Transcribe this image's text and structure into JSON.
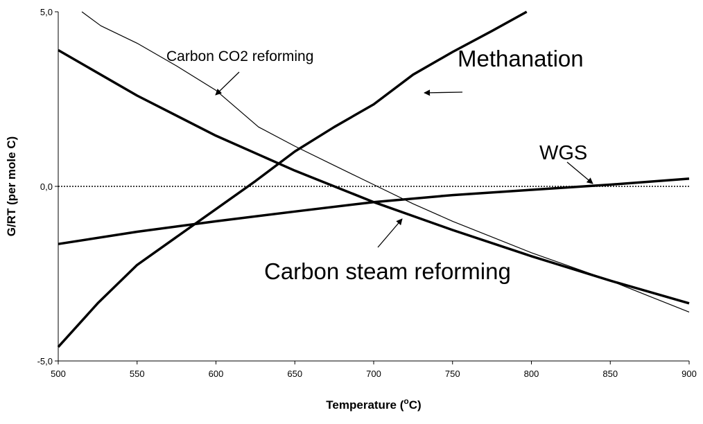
{
  "chart_data": {
    "type": "line",
    "xlabel": [
      "Temperature (",
      "o",
      "C)"
    ],
    "ylabel": "G/RT (per mole C)",
    "xlim": [
      500,
      900
    ],
    "ylim": [
      -5,
      5
    ],
    "xticks": [
      500,
      550,
      600,
      650,
      700,
      750,
      800,
      850,
      900
    ],
    "yticks": [
      {
        "value": -5,
        "label": "-5,0"
      },
      {
        "value": 0,
        "label": "0,0"
      },
      {
        "value": 5,
        "label": "5,0"
      }
    ],
    "reference_line": 0,
    "series": [
      {
        "name": "Carbon CO2 reforming",
        "color": "#000000",
        "width": "thin",
        "x": [
          515,
          527,
          550,
          575,
          600,
          627,
          650,
          675,
          700,
          725,
          750,
          775,
          800,
          825,
          850,
          875,
          900
        ],
        "values": [
          5.0,
          4.6,
          4.1,
          3.45,
          2.75,
          1.7,
          1.15,
          0.6,
          0.05,
          -0.5,
          -1.0,
          -1.45,
          -1.9,
          -2.3,
          -2.7,
          -3.15,
          -3.6
        ]
      },
      {
        "name": "Methanation",
        "color": "#000000",
        "width": "thick",
        "x": [
          500,
          525,
          550,
          575,
          600,
          625,
          650,
          675,
          700,
          725,
          750,
          775,
          797
        ],
        "values": [
          -4.6,
          -3.35,
          -2.25,
          -1.45,
          -0.65,
          0.15,
          1.0,
          1.7,
          2.35,
          3.2,
          3.85,
          4.45,
          5.0
        ]
      },
      {
        "name": "WGS",
        "color": "#000000",
        "width": "thick",
        "x": [
          500,
          550,
          600,
          650,
          700,
          750,
          800,
          850,
          900
        ],
        "values": [
          -1.65,
          -1.3,
          -1.0,
          -0.72,
          -0.45,
          -0.25,
          -0.1,
          0.05,
          0.22
        ]
      },
      {
        "name": "Carbon steam reforming",
        "color": "#000000",
        "width": "thick",
        "x": [
          500,
          550,
          600,
          650,
          700,
          750,
          800,
          850,
          900
        ],
        "values": [
          3.9,
          2.6,
          1.45,
          0.45,
          -0.45,
          -1.25,
          -2.0,
          -2.7,
          -3.35
        ]
      }
    ]
  }
}
